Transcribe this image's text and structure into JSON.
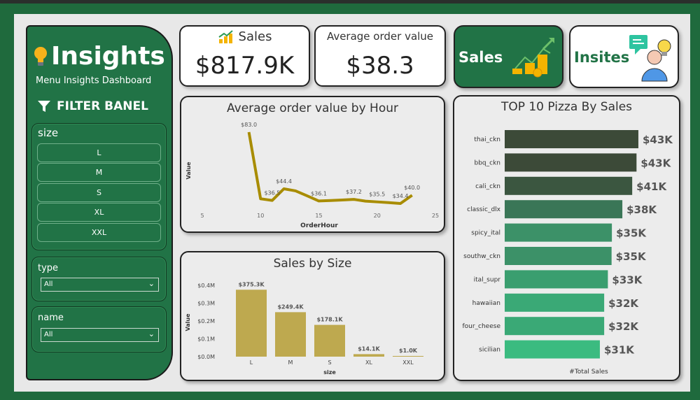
{
  "sidebar": {
    "title": "Insights",
    "subtitle": "Menu Insights Dashboard",
    "filter_title": "FILTER BANEL",
    "size_filter": {
      "label": "size",
      "options": [
        "L",
        "M",
        "S",
        "XL",
        "XXL"
      ]
    },
    "type_filter": {
      "label": "type",
      "value": "All"
    },
    "name_filter": {
      "label": "name",
      "value": "All"
    }
  },
  "kpis": {
    "sales_label": "Sales",
    "sales_value": "$817.9K",
    "aov_label": "Average order value",
    "aov_value": "$38.3"
  },
  "nav": {
    "sales_button": "Sales",
    "insites_button": "Insites"
  },
  "colors": {
    "brand_green": "#217346",
    "line": "#a88c00",
    "bar": "#bea94f"
  },
  "chart_data": [
    {
      "type": "line",
      "title": "Average order value by Hour",
      "xlabel": "OrderHour",
      "ylabel": "Value",
      "xticks": [
        5,
        10,
        15,
        20,
        25
      ],
      "xlim": [
        5,
        25
      ],
      "x": [
        9,
        10,
        11,
        12,
        13,
        14,
        15,
        16,
        17,
        18,
        19,
        20,
        21,
        22,
        23
      ],
      "values": [
        83.0,
        37.6,
        36.5,
        44.4,
        43.0,
        39.6,
        36.1,
        36.4,
        36.8,
        37.2,
        36.0,
        35.5,
        35.0,
        34.4,
        40.0
      ],
      "labels": {
        "9": "$83.0",
        "11": "$36.5",
        "12": "$44.4",
        "15": "$36.1",
        "18": "$37.2",
        "20": "$35.5",
        "22": "$34.4",
        "23": "$40.0"
      }
    },
    {
      "type": "bar",
      "title": "Sales by Size",
      "xlabel": "size",
      "ylabel": "Value",
      "categories": [
        "L",
        "M",
        "S",
        "XL",
        "XXL"
      ],
      "values": [
        375.3,
        249.4,
        178.1,
        14.1,
        1.0
      ],
      "data_labels": [
        "$375.3K",
        "$249.4K",
        "$178.1K",
        "$14.1K",
        "$1.0K"
      ],
      "yticks": [
        "$0.0M",
        "$0.1M",
        "$0.2M",
        "$0.3M",
        "$0.4M"
      ],
      "ylim": [
        0,
        400
      ]
    },
    {
      "type": "bar",
      "orientation": "horizontal",
      "title": "TOP 10 Pizza By Sales",
      "xlabel": "#Total Sales",
      "categories": [
        "thai_ckn",
        "bbq_ckn",
        "cali_ckn",
        "classic_dlx",
        "spicy_ital",
        "southw_ckn",
        "ital_supr",
        "hawaiian",
        "four_cheese",
        "sicilian"
      ],
      "values": [
        43.4,
        42.8,
        41.4,
        38.2,
        34.8,
        34.7,
        33.5,
        32.3,
        32.3,
        30.9
      ],
      "data_labels": [
        "$43K",
        "$43K",
        "$41K",
        "$38K",
        "$35K",
        "$35K",
        "$33K",
        "$32K",
        "$32K",
        "$31K"
      ],
      "colors": [
        "#3c4a38",
        "#3c4a38",
        "#3b5640",
        "#3a7657",
        "#3c9168",
        "#3c9168",
        "#3a9e6f",
        "#3aa976",
        "#3aa976",
        "#3bbb80"
      ]
    }
  ]
}
